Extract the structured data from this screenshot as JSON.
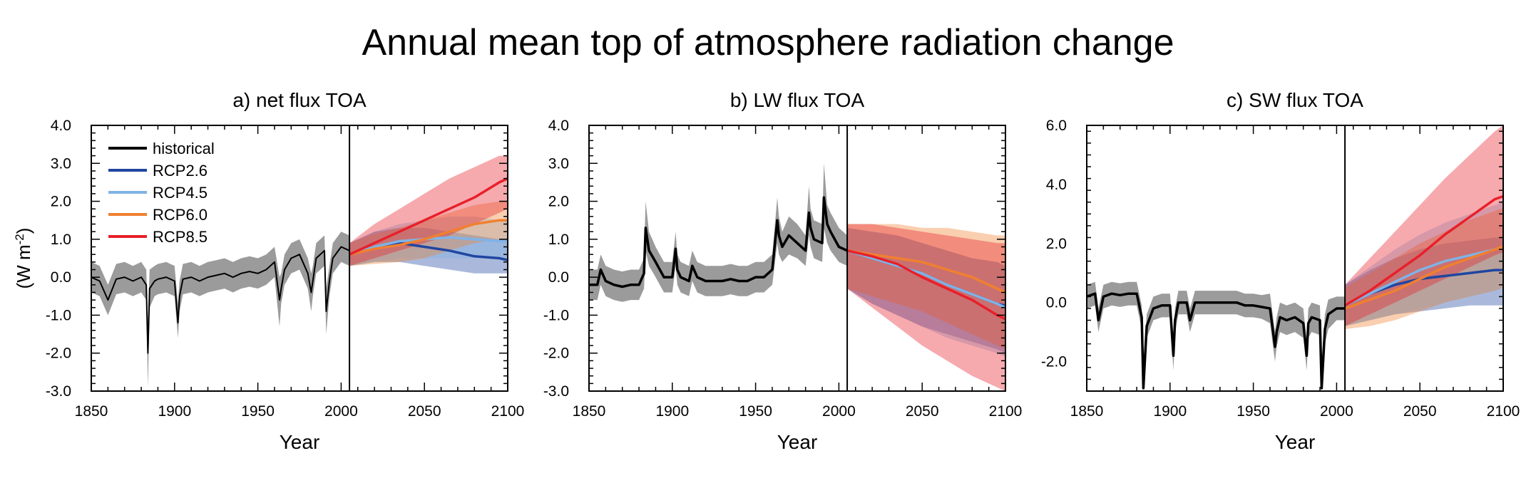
{
  "figure": {
    "title": "Annual mean top of atmosphere radiation change",
    "ylabel": "(W m-2)",
    "ylabel_base": "(W m",
    "ylabel_sup": "-2",
    "ylabel_close": ")",
    "xlabel": "Year",
    "colors": {
      "historical": "#000000",
      "historical_band": "#8a8a8a",
      "RCP2.6": "#2046a0",
      "RCP4.5": "#7fb3e6",
      "RCP6.0": "#f08030",
      "RCP8.5": "#e8202a",
      "vline": "#000000"
    },
    "legend": {
      "placement": "top-left",
      "entries": [
        "historical",
        "RCP2.6",
        "RCP4.5",
        "RCP6.0",
        "RCP8.5"
      ]
    }
  },
  "chart_data": [
    {
      "type": "line",
      "title": "a) net flux TOA",
      "xlabel": "Year",
      "ylabel": "(W m-2)",
      "xlim": [
        1850,
        2100
      ],
      "ylim": [
        -3.0,
        4.0
      ],
      "xticks": [
        "1850",
        "1900",
        "1950",
        "2000",
        "2050",
        "2100"
      ],
      "yticks": [
        "-3.0",
        "-2.0",
        "-1.0",
        "0.0",
        "1.0",
        "2.0",
        "3.0",
        "4.0"
      ],
      "legend": true,
      "vline_x": 2005,
      "historical": {
        "x": [
          1850,
          1855,
          1860,
          1865,
          1870,
          1875,
          1880,
          1883,
          1884,
          1885,
          1888,
          1890,
          1895,
          1900,
          1902,
          1903,
          1905,
          1910,
          1915,
          1920,
          1925,
          1930,
          1935,
          1940,
          1945,
          1950,
          1955,
          1960,
          1963,
          1964,
          1966,
          1970,
          1975,
          1980,
          1982,
          1983,
          1985,
          1990,
          1991,
          1993,
          1995,
          2000,
          2005
        ],
        "values": [
          0.0,
          -0.1,
          -0.6,
          -0.05,
          0.0,
          -0.1,
          0.0,
          -0.2,
          -2.0,
          -0.3,
          -0.1,
          -0.05,
          0.0,
          -0.1,
          -1.2,
          -0.5,
          -0.05,
          0.0,
          -0.1,
          0.0,
          0.05,
          0.1,
          0.0,
          0.1,
          0.15,
          0.1,
          0.2,
          0.4,
          -0.6,
          -0.3,
          0.2,
          0.5,
          0.6,
          0.1,
          -0.4,
          -0.1,
          0.5,
          0.7,
          -0.9,
          -0.1,
          0.5,
          0.8,
          0.7
        ],
        "lower": [
          -0.4,
          -0.5,
          -1.0,
          -0.45,
          -0.4,
          -0.5,
          -0.4,
          -0.6,
          -2.9,
          -0.8,
          -0.5,
          -0.45,
          -0.4,
          -0.5,
          -1.6,
          -0.9,
          -0.45,
          -0.4,
          -0.5,
          -0.4,
          -0.35,
          -0.3,
          -0.4,
          -0.3,
          -0.25,
          -0.3,
          -0.2,
          0.0,
          -1.3,
          -0.7,
          -0.2,
          0.1,
          0.2,
          -0.3,
          -0.9,
          -0.5,
          0.1,
          0.3,
          -1.5,
          -0.5,
          0.1,
          0.4,
          0.3
        ],
        "upper": [
          0.4,
          0.3,
          -0.2,
          0.35,
          0.4,
          0.3,
          0.4,
          0.2,
          -1.2,
          0.2,
          0.3,
          0.35,
          0.4,
          0.3,
          -0.7,
          -0.1,
          0.35,
          0.4,
          0.3,
          0.4,
          0.45,
          0.5,
          0.4,
          0.5,
          0.55,
          0.5,
          0.6,
          0.8,
          0.0,
          0.1,
          0.6,
          0.9,
          1.0,
          0.5,
          0.1,
          0.3,
          0.9,
          1.1,
          -0.3,
          0.3,
          0.9,
          1.2,
          1.1
        ]
      },
      "series": [
        {
          "name": "RCP2.6",
          "x": [
            2005,
            2020,
            2035,
            2050,
            2065,
            2080,
            2095,
            2100
          ],
          "values": [
            0.6,
            0.8,
            0.9,
            0.8,
            0.7,
            0.55,
            0.5,
            0.45
          ],
          "lower": [
            0.3,
            0.4,
            0.4,
            0.3,
            0.2,
            0.1,
            0.1,
            0.1
          ],
          "upper": [
            0.9,
            1.2,
            1.3,
            1.3,
            1.2,
            1.1,
            1.0,
            1.0
          ]
        },
        {
          "name": "RCP4.5",
          "x": [
            2005,
            2020,
            2035,
            2050,
            2065,
            2080,
            2095,
            2100
          ],
          "values": [
            0.6,
            0.8,
            0.95,
            1.0,
            1.05,
            1.0,
            0.95,
            0.95
          ],
          "lower": [
            0.3,
            0.4,
            0.5,
            0.5,
            0.5,
            0.5,
            0.5,
            0.5
          ],
          "upper": [
            0.9,
            1.2,
            1.4,
            1.5,
            1.6,
            1.6,
            1.5,
            1.5
          ]
        },
        {
          "name": "RCP6.0",
          "x": [
            2005,
            2020,
            2035,
            2050,
            2065,
            2080,
            2095,
            2100
          ],
          "values": [
            0.6,
            0.75,
            0.85,
            1.0,
            1.2,
            1.4,
            1.5,
            1.5
          ],
          "lower": [
            0.3,
            0.35,
            0.4,
            0.5,
            0.7,
            0.9,
            1.0,
            1.0
          ],
          "upper": [
            0.9,
            1.15,
            1.3,
            1.5,
            1.7,
            1.9,
            2.0,
            2.0
          ]
        },
        {
          "name": "RCP8.5",
          "x": [
            2005,
            2020,
            2035,
            2050,
            2065,
            2080,
            2095,
            2100
          ],
          "values": [
            0.6,
            0.9,
            1.2,
            1.5,
            1.8,
            2.1,
            2.5,
            2.6
          ],
          "lower": [
            0.3,
            0.5,
            0.7,
            0.9,
            1.1,
            1.4,
            1.7,
            1.8
          ],
          "upper": [
            0.9,
            1.4,
            1.8,
            2.2,
            2.6,
            2.9,
            3.2,
            3.2
          ]
        }
      ]
    },
    {
      "type": "line",
      "title": "b) LW flux TOA",
      "xlabel": "Year",
      "xlim": [
        1850,
        2100
      ],
      "ylim": [
        -3.0,
        4.0
      ],
      "xticks": [
        "1850",
        "1900",
        "1950",
        "2000",
        "2050",
        "2100"
      ],
      "yticks": [
        "-3.0",
        "-2.0",
        "-1.0",
        "0.0",
        "1.0",
        "2.0",
        "3.0",
        "4.0"
      ],
      "legend": false,
      "vline_x": 2005,
      "historical": {
        "x": [
          1850,
          1855,
          1857,
          1860,
          1865,
          1870,
          1875,
          1880,
          1883,
          1884,
          1886,
          1890,
          1895,
          1900,
          1902,
          1903,
          1905,
          1910,
          1912,
          1915,
          1920,
          1925,
          1930,
          1935,
          1940,
          1945,
          1950,
          1955,
          1960,
          1963,
          1964,
          1966,
          1970,
          1975,
          1980,
          1982,
          1983,
          1985,
          1990,
          1991,
          1993,
          1995,
          2000,
          2005
        ],
        "values": [
          -0.2,
          -0.2,
          0.2,
          -0.1,
          -0.2,
          -0.25,
          -0.2,
          -0.2,
          0.1,
          1.3,
          0.7,
          0.4,
          0.0,
          0.0,
          0.75,
          0.2,
          0.0,
          -0.1,
          0.3,
          0.0,
          -0.1,
          -0.1,
          -0.1,
          -0.05,
          -0.1,
          -0.1,
          0.0,
          0.0,
          0.2,
          1.5,
          1.1,
          0.8,
          1.1,
          0.9,
          0.7,
          1.7,
          1.3,
          1.0,
          0.9,
          2.1,
          1.4,
          1.2,
          0.8,
          0.7
        ],
        "lower": [
          -0.6,
          -0.6,
          -0.2,
          -0.5,
          -0.6,
          -0.65,
          -0.6,
          -0.6,
          -0.3,
          0.7,
          0.3,
          0.0,
          -0.4,
          -0.4,
          0.3,
          -0.2,
          -0.4,
          -0.5,
          -0.1,
          -0.4,
          -0.5,
          -0.5,
          -0.5,
          -0.45,
          -0.5,
          -0.5,
          -0.4,
          -0.4,
          -0.2,
          0.9,
          0.6,
          0.4,
          0.6,
          0.5,
          0.3,
          1.1,
          0.8,
          0.5,
          0.4,
          1.3,
          0.9,
          0.7,
          0.4,
          0.3
        ],
        "upper": [
          0.2,
          0.2,
          0.6,
          0.3,
          0.2,
          0.15,
          0.2,
          0.2,
          0.5,
          2.0,
          1.2,
          0.8,
          0.4,
          0.4,
          1.2,
          0.6,
          0.4,
          0.3,
          0.7,
          0.4,
          0.3,
          0.3,
          0.3,
          0.35,
          0.3,
          0.3,
          0.4,
          0.4,
          0.6,
          2.1,
          1.6,
          1.2,
          1.6,
          1.4,
          1.1,
          2.4,
          1.8,
          1.5,
          1.4,
          3.0,
          1.9,
          1.7,
          1.3,
          1.1
        ]
      },
      "series": [
        {
          "name": "RCP2.6",
          "x": [
            2005,
            2020,
            2035,
            2050,
            2065,
            2080,
            2095,
            2100
          ],
          "values": [
            0.7,
            0.5,
            0.3,
            0.1,
            -0.2,
            -0.45,
            -0.7,
            -0.75
          ],
          "lower": [
            -0.3,
            -0.7,
            -1.0,
            -1.3,
            -1.5,
            -1.7,
            -1.9,
            -2.0
          ],
          "upper": [
            1.3,
            1.2,
            1.1,
            0.9,
            0.7,
            0.5,
            0.4,
            0.3
          ]
        },
        {
          "name": "RCP4.5",
          "x": [
            2005,
            2020,
            2035,
            2050,
            2065,
            2080,
            2095,
            2100
          ],
          "values": [
            0.7,
            0.5,
            0.3,
            0.1,
            -0.2,
            -0.45,
            -0.7,
            -0.8
          ],
          "lower": [
            -0.3,
            -0.7,
            -1.0,
            -1.3,
            -1.6,
            -1.8,
            -2.0,
            -2.1
          ],
          "upper": [
            1.3,
            1.2,
            1.1,
            0.9,
            0.7,
            0.5,
            0.4,
            0.3
          ]
        },
        {
          "name": "RCP6.0",
          "x": [
            2005,
            2020,
            2035,
            2050,
            2065,
            2080,
            2095,
            2100
          ],
          "values": [
            0.7,
            0.6,
            0.5,
            0.4,
            0.2,
            0.0,
            -0.3,
            -0.4
          ],
          "lower": [
            -0.3,
            -0.5,
            -0.7,
            -0.9,
            -1.2,
            -1.5,
            -1.8,
            -1.9
          ],
          "upper": [
            1.4,
            1.4,
            1.4,
            1.3,
            1.3,
            1.2,
            1.1,
            1.1
          ]
        },
        {
          "name": "RCP8.5",
          "x": [
            2005,
            2020,
            2035,
            2050,
            2065,
            2080,
            2095,
            2100
          ],
          "values": [
            0.7,
            0.55,
            0.35,
            0.0,
            -0.3,
            -0.6,
            -1.0,
            -1.1
          ],
          "lower": [
            -0.3,
            -0.8,
            -1.3,
            -1.8,
            -2.2,
            -2.6,
            -2.9,
            -3.0
          ],
          "upper": [
            1.4,
            1.4,
            1.3,
            1.2,
            1.1,
            1.0,
            0.9,
            0.9
          ]
        }
      ]
    },
    {
      "type": "line",
      "title": "c) SW flux TOA",
      "xlabel": "Year",
      "xlim": [
        1850,
        2100
      ],
      "ylim": [
        -3.0,
        6.0
      ],
      "xticks": [
        "1850",
        "1900",
        "1950",
        "2000",
        "2050",
        "2100"
      ],
      "yticks": [
        "-2.0",
        "0.0",
        "2.0",
        "4.0",
        "6.0"
      ],
      "legend": false,
      "vline_x": 2005,
      "historical": {
        "x": [
          1850,
          1855,
          1857,
          1860,
          1865,
          1870,
          1875,
          1880,
          1883,
          1884,
          1886,
          1890,
          1895,
          1900,
          1902,
          1903,
          1905,
          1910,
          1912,
          1915,
          1920,
          1925,
          1930,
          1935,
          1940,
          1945,
          1950,
          1955,
          1960,
          1963,
          1964,
          1966,
          1970,
          1975,
          1980,
          1982,
          1983,
          1985,
          1990,
          1991,
          1993,
          1995,
          2000,
          2005
        ],
        "values": [
          0.2,
          0.3,
          -0.6,
          0.2,
          0.3,
          0.25,
          0.3,
          0.3,
          -0.5,
          -2.9,
          -0.8,
          -0.2,
          -0.1,
          -0.1,
          -1.8,
          -0.6,
          0.0,
          0.0,
          -0.6,
          0.0,
          0.0,
          0.0,
          0.0,
          0.0,
          0.0,
          -0.1,
          -0.1,
          -0.15,
          -0.2,
          -1.5,
          -1.0,
          -0.5,
          -0.6,
          -0.5,
          -0.7,
          -1.8,
          -0.7,
          -0.5,
          -0.6,
          -2.9,
          -0.9,
          -0.4,
          -0.2,
          -0.2
        ],
        "lower": [
          -0.2,
          -0.1,
          -1.0,
          -0.2,
          -0.1,
          -0.15,
          -0.1,
          -0.1,
          -0.9,
          -3.0,
          -1.2,
          -0.6,
          -0.5,
          -0.5,
          -2.3,
          -1.0,
          -0.4,
          -0.4,
          -1.0,
          -0.4,
          -0.4,
          -0.4,
          -0.4,
          -0.4,
          -0.4,
          -0.5,
          -0.5,
          -0.55,
          -0.7,
          -2.0,
          -1.5,
          -1.0,
          -1.1,
          -1.0,
          -1.2,
          -2.3,
          -1.2,
          -1.0,
          -1.1,
          -3.0,
          -1.4,
          -0.9,
          -0.6,
          -0.6
        ],
        "upper": [
          0.6,
          0.7,
          -0.2,
          0.6,
          0.7,
          0.65,
          0.7,
          0.7,
          -0.1,
          -2.0,
          -0.4,
          0.2,
          0.3,
          0.3,
          -1.3,
          -0.2,
          0.4,
          0.4,
          -0.2,
          0.4,
          0.4,
          0.4,
          0.4,
          0.4,
          0.4,
          0.3,
          0.3,
          0.25,
          0.3,
          -1.0,
          -0.5,
          0.0,
          -0.1,
          0.0,
          -0.2,
          -1.3,
          -0.2,
          0.0,
          -0.1,
          -2.0,
          -0.4,
          0.1,
          0.2,
          0.2
        ]
      },
      "series": [
        {
          "name": "RCP2.6",
          "x": [
            2005,
            2020,
            2035,
            2050,
            2065,
            2080,
            2095,
            2100
          ],
          "values": [
            -0.1,
            0.3,
            0.6,
            0.8,
            0.9,
            1.0,
            1.1,
            1.1
          ],
          "lower": [
            -0.8,
            -0.6,
            -0.4,
            -0.3,
            -0.2,
            -0.1,
            -0.1,
            -0.1
          ],
          "upper": [
            0.6,
            1.1,
            1.5,
            1.8,
            2.0,
            2.1,
            2.2,
            2.2
          ]
        },
        {
          "name": "RCP4.5",
          "x": [
            2005,
            2020,
            2035,
            2050,
            2065,
            2080,
            2095,
            2100
          ],
          "values": [
            -0.1,
            0.3,
            0.7,
            1.1,
            1.4,
            1.6,
            1.8,
            1.9
          ],
          "lower": [
            -0.8,
            -0.6,
            -0.4,
            -0.2,
            0.0,
            0.2,
            0.4,
            0.5
          ],
          "upper": [
            0.6,
            1.2,
            1.8,
            2.3,
            2.7,
            3.0,
            3.3,
            3.4
          ]
        },
        {
          "name": "RCP6.0",
          "x": [
            2005,
            2020,
            2035,
            2050,
            2065,
            2080,
            2095,
            2100
          ],
          "values": [
            -0.2,
            0.1,
            0.4,
            0.8,
            1.2,
            1.5,
            1.8,
            1.9
          ],
          "lower": [
            -0.9,
            -0.8,
            -0.6,
            -0.3,
            0.0,
            0.2,
            0.4,
            0.5
          ],
          "upper": [
            0.5,
            1.0,
            1.5,
            2.0,
            2.4,
            2.8,
            3.1,
            3.2
          ]
        },
        {
          "name": "RCP8.5",
          "x": [
            2005,
            2020,
            2035,
            2050,
            2065,
            2080,
            2095,
            2100
          ],
          "values": [
            -0.1,
            0.4,
            1.0,
            1.6,
            2.3,
            2.9,
            3.5,
            3.6
          ],
          "lower": [
            -0.8,
            -0.4,
            0.0,
            0.4,
            0.8,
            1.2,
            1.6,
            1.7
          ],
          "upper": [
            0.6,
            1.5,
            2.4,
            3.3,
            4.2,
            5.0,
            5.8,
            6.0
          ]
        }
      ]
    }
  ]
}
